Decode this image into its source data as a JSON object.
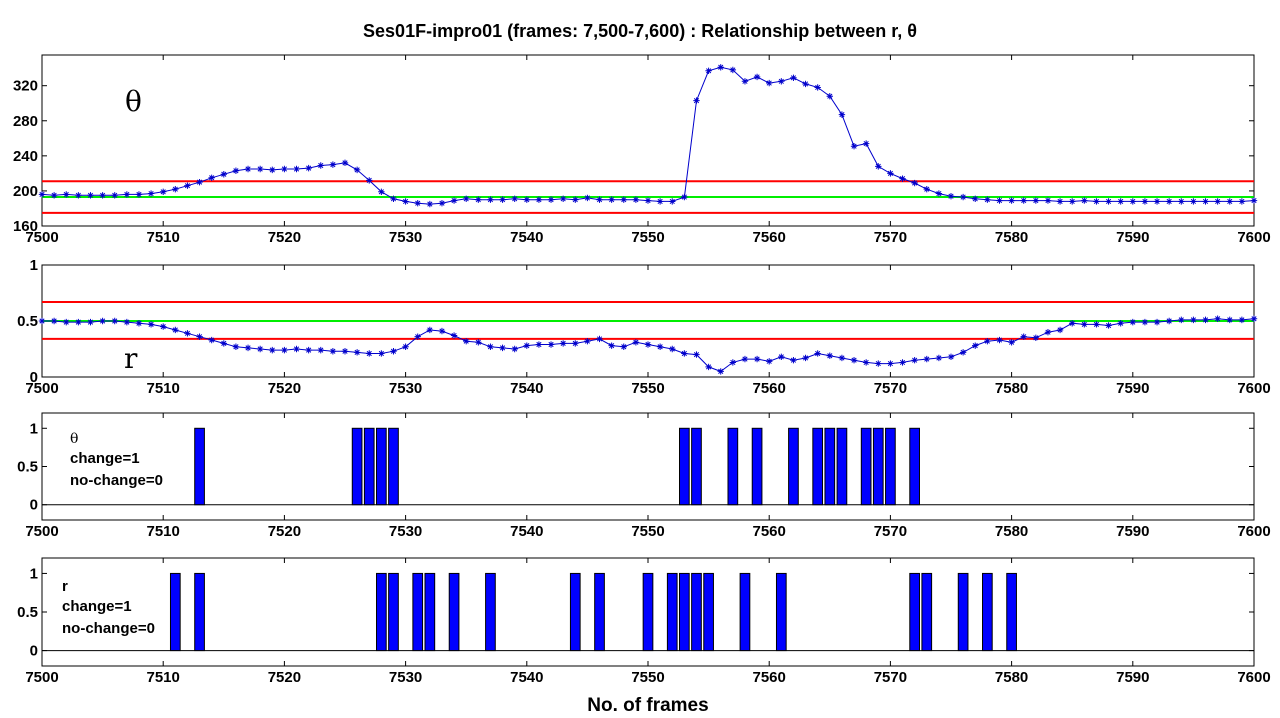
{
  "title": "Ses01F-impro01 (frames: 7,500-7,600) : Relationship between r, θ",
  "xlabel": "No. of frames",
  "colors": {
    "series": "#0000cc",
    "threshold": "#ff0000",
    "mean": "#00ee00",
    "bar": "#0000ff"
  },
  "chart_data": [
    {
      "type": "line",
      "symbol": "θ",
      "xlim": [
        7500,
        7600
      ],
      "ylim": [
        160,
        355
      ],
      "xticks": [
        7500,
        7510,
        7520,
        7530,
        7540,
        7550,
        7560,
        7570,
        7580,
        7590,
        7600
      ],
      "yticks": [
        160,
        200,
        240,
        280,
        320
      ],
      "x_start": 7500,
      "y": [
        196,
        195,
        196,
        195,
        195,
        195,
        195,
        196,
        196,
        197,
        199,
        202,
        206,
        210,
        215,
        219,
        223,
        225,
        225,
        224,
        225,
        225,
        226,
        229,
        230,
        232,
        224,
        212,
        199,
        191,
        188,
        186,
        185,
        186,
        189,
        191,
        190,
        190,
        190,
        191,
        190,
        190,
        190,
        191,
        190,
        192,
        190,
        190,
        190,
        190,
        189,
        188,
        188,
        193,
        303,
        337,
        341,
        338,
        325,
        330,
        323,
        325,
        329,
        322,
        318,
        308,
        287,
        251,
        254,
        228,
        220,
        214,
        209,
        202,
        197,
        194,
        193,
        191,
        190,
        189,
        189,
        189,
        189,
        189,
        188,
        188,
        189,
        188,
        188,
        188,
        188,
        188,
        188,
        188,
        188,
        188,
        188,
        188,
        188,
        188,
        189
      ],
      "hlines": {
        "upper": 211,
        "mean": 193,
        "lower": 175
      }
    },
    {
      "type": "line",
      "symbol": "r",
      "xlim": [
        7500,
        7600
      ],
      "ylim": [
        0,
        1
      ],
      "xticks": [
        7500,
        7510,
        7520,
        7530,
        7540,
        7550,
        7560,
        7570,
        7580,
        7590,
        7600
      ],
      "yticks": [
        "0",
        "0.5",
        "1"
      ],
      "ytick_values": [
        0,
        0.5,
        1
      ],
      "x_start": 7500,
      "y": [
        0.5,
        0.5,
        0.49,
        0.49,
        0.49,
        0.5,
        0.5,
        0.49,
        0.48,
        0.47,
        0.45,
        0.42,
        0.39,
        0.36,
        0.33,
        0.3,
        0.27,
        0.26,
        0.25,
        0.24,
        0.24,
        0.25,
        0.24,
        0.24,
        0.23,
        0.23,
        0.22,
        0.21,
        0.21,
        0.23,
        0.27,
        0.36,
        0.42,
        0.41,
        0.37,
        0.32,
        0.31,
        0.27,
        0.26,
        0.25,
        0.28,
        0.29,
        0.29,
        0.3,
        0.3,
        0.32,
        0.34,
        0.28,
        0.27,
        0.31,
        0.29,
        0.27,
        0.25,
        0.21,
        0.2,
        0.09,
        0.05,
        0.13,
        0.16,
        0.16,
        0.14,
        0.18,
        0.15,
        0.17,
        0.21,
        0.19,
        0.17,
        0.15,
        0.13,
        0.12,
        0.12,
        0.13,
        0.15,
        0.16,
        0.17,
        0.18,
        0.22,
        0.28,
        0.32,
        0.33,
        0.31,
        0.36,
        0.35,
        0.4,
        0.42,
        0.48,
        0.47,
        0.47,
        0.46,
        0.48,
        0.49,
        0.49,
        0.49,
        0.5,
        0.51,
        0.51,
        0.51,
        0.52,
        0.51,
        0.51,
        0.52
      ],
      "hlines": {
        "upper": 0.67,
        "mean": 0.5,
        "lower": 0.34
      }
    },
    {
      "type": "bar",
      "symbol": "θ",
      "annotation": [
        "change=1",
        "no-change=0"
      ],
      "xlim": [
        7500,
        7600
      ],
      "ylim": [
        -0.2,
        1.2
      ],
      "xticks": [
        7500,
        7510,
        7520,
        7530,
        7540,
        7550,
        7560,
        7570,
        7580,
        7590,
        7600
      ],
      "yticks": [
        "0",
        "0.5",
        "1"
      ],
      "ytick_values": [
        0,
        0.5,
        1
      ],
      "bars_at_value_1": [
        7513,
        7526,
        7527,
        7528,
        7529,
        7553,
        7554,
        7557,
        7559,
        7562,
        7564,
        7565,
        7566,
        7568,
        7569,
        7570,
        7572
      ]
    },
    {
      "type": "bar",
      "symbol": "r",
      "annotation": [
        "change=1",
        "no-change=0"
      ],
      "xlim": [
        7500,
        7600
      ],
      "ylim": [
        -0.2,
        1.2
      ],
      "xticks": [
        7500,
        7510,
        7520,
        7530,
        7540,
        7550,
        7560,
        7570,
        7580,
        7590,
        7600
      ],
      "yticks": [
        "0",
        "0.5",
        "1"
      ],
      "ytick_values": [
        0,
        0.5,
        1
      ],
      "bars_at_value_1": [
        7511,
        7513,
        7528,
        7529,
        7531,
        7532,
        7534,
        7537,
        7544,
        7546,
        7550,
        7552,
        7553,
        7554,
        7555,
        7558,
        7561,
        7572,
        7573,
        7576,
        7578,
        7580
      ]
    }
  ]
}
